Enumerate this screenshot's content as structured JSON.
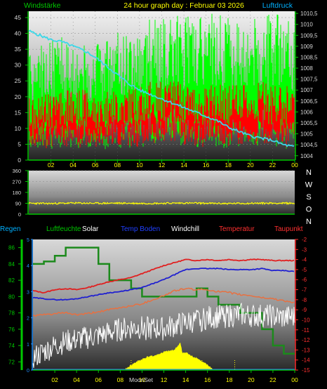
{
  "header": {
    "left_label": "Windstärke",
    "title": "24 hour graph day : Februar 03 2026",
    "right_label": "Luftdruck"
  },
  "colors": {
    "wind_max": "#00ff00",
    "wind_avg": "#ff0000",
    "pressure": "#3ad8e8",
    "wind_dir": "#ffff00",
    "humidity": "#1c8a1c",
    "temp": "#e02020",
    "soil": "#2020d0",
    "windchill": "#ffffff",
    "dewpoint": "#e87040",
    "solar": "#ffff00",
    "label_green": "#00c800",
    "label_cyan": "#00b0ff",
    "axis_left_third": "#2090ff",
    "axis_right_third": "#ff3030"
  },
  "x_ticks": [
    "02",
    "04",
    "06",
    "08",
    "10",
    "12",
    "14",
    "16",
    "18",
    "20",
    "22",
    "00"
  ],
  "panel1": {
    "left_ticks": [
      "45",
      "40",
      "35",
      "30",
      "25",
      "20",
      "15",
      "10",
      "5",
      "0"
    ],
    "right_ticks": [
      "1010,5",
      "1010",
      "1009,5",
      "1009",
      "1008,5",
      "1008",
      "1007,5",
      "1007",
      "1006,5",
      "1006",
      "1005,5",
      "1005",
      "1004,5",
      "1004"
    ]
  },
  "panel2": {
    "left_ticks": [
      "360",
      "270",
      "180",
      "90",
      "0"
    ],
    "compass": [
      "N",
      "W",
      "S",
      "O",
      "N"
    ]
  },
  "panel3": {
    "legend": [
      "Regen",
      "Luftfeuchte",
      "Solar",
      "Temp Boden",
      "Windchill",
      "Temperatur",
      "Taupunkt"
    ],
    "left_ticks": [
      "86",
      "84",
      "82",
      "80",
      "78",
      "76",
      "74",
      "72"
    ],
    "inner_ticks": [
      "5",
      "4",
      "3",
      "2",
      "1",
      "0"
    ],
    "right_ticks": [
      "-2",
      "-3",
      "-4",
      "-5",
      "-6",
      "-7",
      "-8",
      "-9",
      "-10",
      "-11",
      "-12",
      "-13",
      "-14",
      "-15"
    ],
    "annotation": "MoonSet"
  },
  "chart_data": [
    {
      "type": "bar",
      "title": "24 hour graph day : Februar 03 2026",
      "ylabel": "Windstärke",
      "y2label": "Luftdruck",
      "xlim": [
        0,
        24
      ],
      "ylim": [
        0,
        47
      ],
      "y2lim": [
        1003.8,
        1010.6
      ],
      "series": [
        {
          "name": "Windstärke",
          "x": [
            0,
            1,
            2,
            3,
            4,
            5,
            6,
            7,
            8,
            9,
            10,
            11,
            12,
            13,
            14,
            15,
            16,
            17,
            18,
            19,
            20,
            21,
            22,
            23,
            24
          ],
          "max": [
            30,
            32,
            33,
            34,
            35,
            33,
            32,
            33,
            36,
            37,
            38,
            39,
            39,
            40,
            40,
            40,
            41,
            40,
            40,
            40,
            40,
            40,
            40,
            40,
            37
          ],
          "avg": [
            17,
            17,
            18,
            18,
            19,
            19,
            18,
            18,
            20,
            20,
            20,
            21,
            21,
            21,
            21,
            21,
            20,
            20,
            20,
            20,
            21,
            21,
            20,
            20,
            19
          ]
        },
        {
          "name": "Luftdruck",
          "x": [
            0,
            1,
            2,
            3,
            4,
            5,
            6,
            7,
            8,
            9,
            10,
            11,
            12,
            13,
            14,
            15,
            16,
            17,
            18,
            19,
            20,
            21,
            22,
            23,
            24
          ],
          "values": [
            1009.7,
            1009.5,
            1009.3,
            1009.2,
            1009.0,
            1008.8,
            1008.5,
            1008.1,
            1007.7,
            1007.3,
            1007.0,
            1006.8,
            1006.6,
            1006.4,
            1006.2,
            1006.0,
            1005.8,
            1005.6,
            1005.3,
            1005.1,
            1004.9,
            1004.8,
            1004.7,
            1004.5,
            1004.4
          ]
        }
      ]
    },
    {
      "type": "line",
      "xlim": [
        0,
        24
      ],
      "ylim": [
        0,
        360
      ],
      "series": [
        {
          "name": "wind direction",
          "x": [
            0,
            2,
            4,
            6,
            8,
            10,
            12,
            14,
            16,
            18,
            20,
            22,
            24
          ],
          "values": [
            90,
            88,
            92,
            90,
            91,
            89,
            90,
            92,
            90,
            88,
            90,
            91,
            90
          ]
        }
      ]
    },
    {
      "type": "line",
      "xlim": [
        0,
        24
      ],
      "ylim": [
        71,
        87
      ],
      "y2lim": [
        -15,
        -2
      ],
      "series": [
        {
          "name": "Luftfeuchte",
          "axis": "left",
          "x": [
            0,
            1,
            2,
            3,
            4,
            5,
            6,
            7,
            8,
            9,
            10,
            11,
            12,
            13,
            14,
            15,
            16,
            17,
            18,
            19,
            20,
            21,
            22,
            23,
            24
          ],
          "values": [
            84,
            84.3,
            85,
            86,
            86,
            86,
            84,
            82,
            82,
            81,
            80,
            80,
            80,
            80,
            80,
            81,
            80,
            79,
            79,
            78,
            78,
            76,
            74,
            73,
            73
          ]
        },
        {
          "name": "Temperatur",
          "axis": "right",
          "x": [
            0,
            1,
            2,
            3,
            4,
            5,
            6,
            7,
            8,
            9,
            10,
            11,
            12,
            13,
            14,
            15,
            16,
            17,
            18,
            19,
            20,
            21,
            22,
            23,
            24
          ],
          "values": [
            -7.1,
            -7.3,
            -7.0,
            -6.9,
            -7.0,
            -6.8,
            -6.5,
            -6.2,
            -6.0,
            -5.8,
            -5.4,
            -5.0,
            -4.6,
            -4.3,
            -4.0,
            -4.1,
            -4.0,
            -4.1,
            -4.0,
            -4.1,
            -4.0,
            -4.0,
            -4.1,
            -4.1,
            -4.1
          ]
        },
        {
          "name": "Temp Boden",
          "axis": "right",
          "x": [
            0,
            1,
            2,
            3,
            4,
            5,
            6,
            7,
            8,
            9,
            10,
            11,
            12,
            13,
            14,
            15,
            16,
            17,
            18,
            19,
            20,
            21,
            22,
            23,
            24
          ],
          "values": [
            -7.8,
            -7.9,
            -8.0,
            -8.0,
            -7.9,
            -7.7,
            -7.5,
            -7.3,
            -7.2,
            -7.0,
            -6.8,
            -6.4,
            -6.0,
            -5.5,
            -5.0,
            -4.9,
            -4.9,
            -4.9,
            -5.0,
            -5.0,
            -5.0,
            -4.9,
            -5.1,
            -5.1,
            -5.2
          ]
        },
        {
          "name": "Taupunkt",
          "axis": "right",
          "x": [
            0,
            1,
            2,
            3,
            4,
            5,
            6,
            7,
            8,
            9,
            10,
            11,
            12,
            13,
            14,
            15,
            16,
            17,
            18,
            19,
            20,
            21,
            22,
            23,
            24
          ],
          "values": [
            -9.6,
            -9.5,
            -9.4,
            -9.3,
            -9.5,
            -9.4,
            -9.2,
            -9.0,
            -8.8,
            -8.6,
            -8.4,
            -8.0,
            -7.6,
            -7.1,
            -6.9,
            -7.0,
            -7.0,
            -7.2,
            -7.3,
            -7.5,
            -7.6,
            -7.8,
            -7.9,
            -8.1,
            -8.3
          ]
        },
        {
          "name": "Windchill",
          "axis": "right",
          "x": [
            0,
            1,
            2,
            3,
            4,
            5,
            6,
            7,
            8,
            9,
            10,
            11,
            12,
            13,
            14,
            15,
            16,
            17,
            18,
            19,
            20,
            21,
            22,
            23,
            24
          ],
          "values": [
            -13.8,
            -13.2,
            -12.6,
            -12.2,
            -12.0,
            -11.8,
            -11.6,
            -11.3,
            -11.0,
            -10.8,
            -10.8,
            -10.9,
            -10.9,
            -10.6,
            -10.3,
            -10.1,
            -9.8,
            -9.7,
            -9.6,
            -9.5,
            -9.6,
            -9.6,
            -9.7,
            -9.8,
            -9.7
          ]
        },
        {
          "name": "Solar",
          "axis": "left",
          "x": [
            8.5,
            9,
            9.5,
            10,
            10.5,
            11,
            11.5,
            12,
            12.5,
            13,
            13.5,
            13.7,
            14,
            14.5,
            15,
            15.5,
            16,
            16.5
          ],
          "values": [
            71.1,
            71.6,
            72.0,
            72.3,
            72.6,
            72.7,
            72.9,
            73.2,
            73.3,
            73.5,
            74.3,
            73.0,
            73.2,
            72.7,
            72.5,
            72.0,
            71.6,
            71.1
          ]
        },
        {
          "name": "Regen",
          "axis": "inner",
          "x": [
            0,
            24
          ],
          "values": [
            0,
            0
          ]
        }
      ]
    }
  ]
}
